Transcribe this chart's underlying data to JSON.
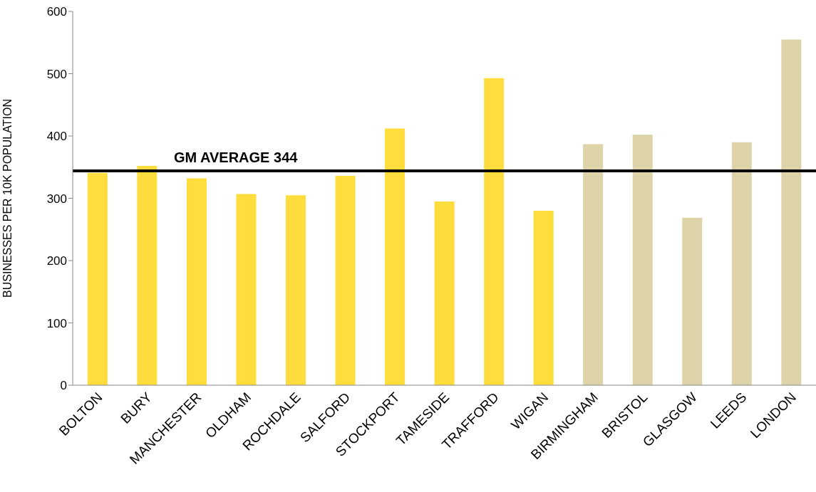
{
  "chart_data": {
    "type": "bar",
    "ylabel": "BUSINESSES PER 10K POPULATION",
    "categories": [
      "BOLTON",
      "BURY",
      "MANCHESTER",
      "OLDHAM",
      "ROCHDALE",
      "SALFORD",
      "STOCKPORT",
      "TAMESIDE",
      "TRAFFORD",
      "WIGAN",
      "BIRMINGHAM",
      "BRISTOL",
      "GLASGOW",
      "LEEDS",
      "LONDON"
    ],
    "values": [
      341,
      352,
      332,
      307,
      305,
      336,
      412,
      295,
      493,
      280,
      387,
      402,
      269,
      390,
      555
    ],
    "colors": [
      "#ffdd3c",
      "#ffdd3c",
      "#ffdd3c",
      "#ffdd3c",
      "#ffdd3c",
      "#ffdd3c",
      "#ffdd3c",
      "#ffdd3c",
      "#ffdd3c",
      "#ffdd3c",
      "#ddd3a8",
      "#ddd3a8",
      "#ddd3a8",
      "#ddd3a8",
      "#ddd3a8"
    ],
    "ylim": [
      0,
      600
    ],
    "yticks": [
      0,
      100,
      200,
      300,
      400,
      500,
      600
    ],
    "grid": false,
    "ref_lines": [
      {
        "axis": "y",
        "value": 344,
        "label": "GM AVERAGE 344",
        "color": "#000000"
      }
    ]
  }
}
